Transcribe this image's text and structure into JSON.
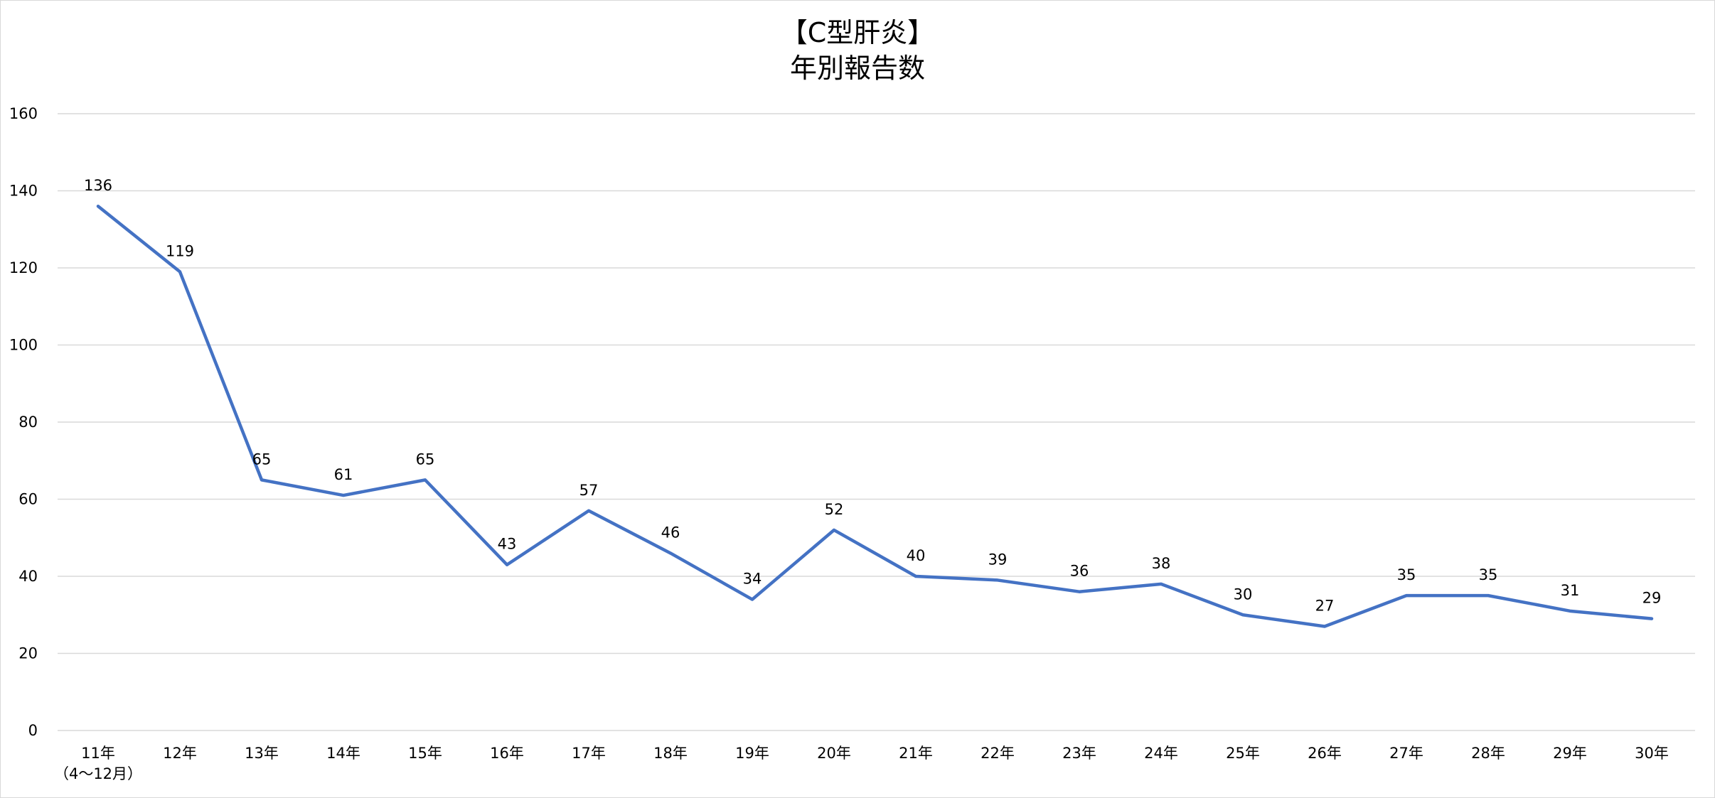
{
  "chart_data": {
    "type": "line",
    "title": "【C型肝炎】",
    "subtitle": "年別報告数",
    "xlabel": "",
    "ylabel": "",
    "categories": [
      "11年\n（4～12月）",
      "12年",
      "13年",
      "14年",
      "15年",
      "16年",
      "17年",
      "18年",
      "19年",
      "20年",
      "21年",
      "22年",
      "23年",
      "24年",
      "25年",
      "26年",
      "27年",
      "28年",
      "29年",
      "30年"
    ],
    "series": [
      {
        "values": [
          136,
          119,
          65,
          61,
          65,
          43,
          57,
          46,
          34,
          52,
          40,
          39,
          36,
          38,
          30,
          27,
          35,
          35,
          31,
          29
        ],
        "color": "#4472c4"
      }
    ],
    "ylim": [
      0,
      160
    ],
    "yticks": [
      0,
      20,
      40,
      60,
      80,
      100,
      120,
      140,
      160
    ],
    "grid": true,
    "legend": "none",
    "data_labels": true
  }
}
